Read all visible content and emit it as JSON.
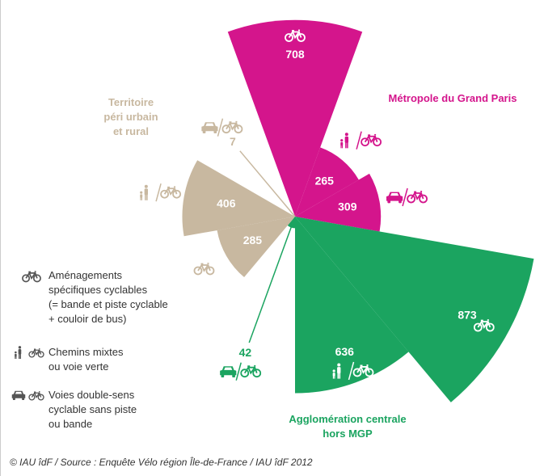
{
  "chart_data": {
    "type": "polar-area",
    "categories": [
      [
        "Aménagements",
        "spécifiques cyclables",
        "(= bande et piste cyclable",
        "+ couloir de bus)"
      ],
      [
        "Chemins mixtes",
        "ou voie verte"
      ],
      [
        "Voies double-sens",
        "cyclable sans piste",
        "ou bande"
      ]
    ],
    "series": [
      {
        "name": [
          "Métropole du Grand Paris"
        ],
        "color": "#d4158c",
        "values": [
          708,
          265,
          309
        ]
      },
      {
        "name": [
          "Agglomération centrale",
          "hors MGP"
        ],
        "color": "#1ba460",
        "values": [
          873,
          636,
          42
        ]
      },
      {
        "name": [
          "Territoire",
          "péri urbain",
          "et rural"
        ],
        "color": "#c8b8a0",
        "values": [
          285,
          406,
          7
        ]
      }
    ],
    "source": "© IAU îdF / Source : Enquête Vélo région Île-de-France / IAU îdF 2012"
  }
}
